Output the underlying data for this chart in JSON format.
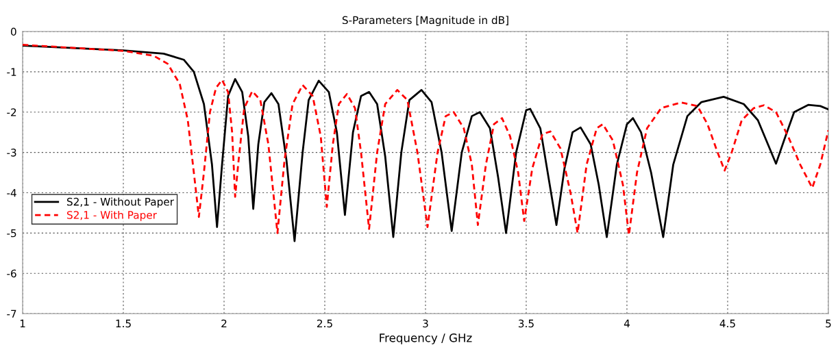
{
  "chart_data": {
    "type": "line",
    "title": "S-Parameters [Magnitude in dB]",
    "xlabel": "Frequency / GHz",
    "xlim": [
      1,
      5
    ],
    "xticks": [
      1,
      1.5,
      2,
      2.5,
      3,
      3.5,
      4,
      4.5,
      5
    ],
    "ylim": [
      -7,
      0
    ],
    "yticks": [
      -7,
      -6,
      -5,
      -4,
      -3,
      -2,
      -1,
      0
    ],
    "grid": true,
    "legend": "left",
    "marker": "none",
    "series": [
      {
        "name": "S2,1 - Without Paper",
        "color": "#000000",
        "line_style": "solid",
        "x": [
          1.0,
          1.5,
          1.7,
          1.8,
          1.85,
          1.9,
          1.94,
          1.965,
          1.99,
          2.02,
          2.055,
          2.09,
          2.12,
          2.145,
          2.17,
          2.2,
          2.235,
          2.27,
          2.31,
          2.35,
          2.39,
          2.42,
          2.47,
          2.52,
          2.56,
          2.6,
          2.64,
          2.68,
          2.72,
          2.76,
          2.8,
          2.84,
          2.88,
          2.92,
          2.98,
          3.03,
          3.08,
          3.13,
          3.18,
          3.23,
          3.27,
          3.32,
          3.36,
          3.4,
          3.45,
          3.5,
          3.52,
          3.57,
          3.61,
          3.65,
          3.69,
          3.73,
          3.77,
          3.82,
          3.86,
          3.9,
          3.95,
          4.0,
          4.03,
          4.07,
          4.12,
          4.18,
          4.23,
          4.3,
          4.37,
          4.48,
          4.58,
          4.65,
          4.7,
          4.74,
          4.78,
          4.83,
          4.9,
          4.96,
          5.0
        ],
        "values": [
          -0.35,
          -0.47,
          -0.55,
          -0.7,
          -1.0,
          -1.8,
          -3.3,
          -4.85,
          -3.3,
          -1.6,
          -1.18,
          -1.5,
          -2.6,
          -4.4,
          -2.8,
          -1.75,
          -1.53,
          -1.8,
          -3.2,
          -5.2,
          -3.0,
          -1.7,
          -1.22,
          -1.5,
          -2.5,
          -4.55,
          -2.5,
          -1.6,
          -1.5,
          -1.8,
          -3.1,
          -5.1,
          -3.0,
          -1.7,
          -1.45,
          -1.75,
          -3.0,
          -4.95,
          -3.0,
          -2.1,
          -2.0,
          -2.4,
          -3.6,
          -5.0,
          -3.0,
          -1.95,
          -1.92,
          -2.4,
          -3.6,
          -4.8,
          -3.4,
          -2.5,
          -2.38,
          -2.8,
          -3.8,
          -5.1,
          -3.3,
          -2.3,
          -2.15,
          -2.5,
          -3.5,
          -5.1,
          -3.3,
          -2.1,
          -1.75,
          -1.62,
          -1.8,
          -2.2,
          -2.8,
          -3.28,
          -2.7,
          -2.0,
          -1.82,
          -1.85,
          -1.93
        ]
      },
      {
        "name": "S2,1 - With Paper",
        "color": "#ff0000",
        "line_style": "dashed",
        "x": [
          1.0,
          1.5,
          1.65,
          1.72,
          1.78,
          1.82,
          1.85,
          1.875,
          1.9,
          1.93,
          1.96,
          1.99,
          2.02,
          2.04,
          2.055,
          2.07,
          2.1,
          2.14,
          2.18,
          2.22,
          2.265,
          2.3,
          2.34,
          2.39,
          2.44,
          2.48,
          2.51,
          2.54,
          2.57,
          2.61,
          2.65,
          2.68,
          2.72,
          2.76,
          2.8,
          2.86,
          2.91,
          2.96,
          3.01,
          3.06,
          3.1,
          3.14,
          3.19,
          3.23,
          3.26,
          3.3,
          3.34,
          3.38,
          3.42,
          3.46,
          3.49,
          3.53,
          3.58,
          3.62,
          3.67,
          3.72,
          3.755,
          3.8,
          3.85,
          3.88,
          3.93,
          3.98,
          4.01,
          4.05,
          4.1,
          4.17,
          4.27,
          4.35,
          4.4,
          4.45,
          4.485,
          4.52,
          4.57,
          4.63,
          4.68,
          4.74,
          4.8,
          4.86,
          4.92,
          4.96,
          5.0
        ],
        "values": [
          -0.33,
          -0.48,
          -0.6,
          -0.8,
          -1.3,
          -2.2,
          -3.5,
          -4.6,
          -3.5,
          -2.0,
          -1.4,
          -1.2,
          -1.5,
          -2.5,
          -4.1,
          -3.3,
          -1.9,
          -1.48,
          -1.7,
          -2.8,
          -5.0,
          -3.2,
          -1.8,
          -1.33,
          -1.6,
          -2.6,
          -4.35,
          -2.8,
          -1.8,
          -1.55,
          -1.9,
          -3.0,
          -4.9,
          -3.0,
          -1.8,
          -1.45,
          -1.7,
          -3.0,
          -4.85,
          -3.0,
          -2.1,
          -2.0,
          -2.4,
          -3.3,
          -4.8,
          -3.3,
          -2.3,
          -2.15,
          -2.6,
          -3.5,
          -4.7,
          -3.4,
          -2.55,
          -2.48,
          -2.9,
          -4.0,
          -5.0,
          -3.3,
          -2.4,
          -2.3,
          -2.7,
          -3.8,
          -5.05,
          -3.5,
          -2.4,
          -1.9,
          -1.76,
          -1.85,
          -2.3,
          -3.0,
          -3.45,
          -3.0,
          -2.2,
          -1.9,
          -1.83,
          -2.0,
          -2.6,
          -3.3,
          -3.88,
          -3.3,
          -2.45
        ]
      }
    ]
  }
}
